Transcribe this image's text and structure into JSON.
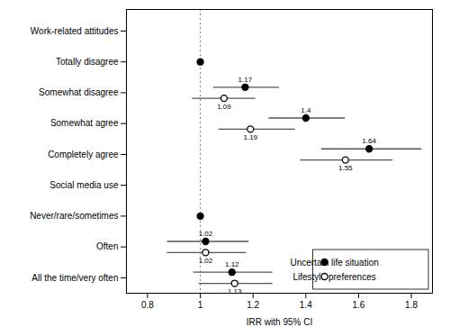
{
  "chart_data": {
    "type": "forest",
    "xlabel": "IRR with 95% CI",
    "xlim": [
      0.72,
      1.88
    ],
    "xticks": [
      0.8,
      1,
      1.2,
      1.4,
      1.6,
      1.8
    ],
    "reference_x": 1.0,
    "ci_color": "#555555",
    "legend": "lower right",
    "data_labels": true,
    "categories": [
      "Work-related attitudes",
      "Totally disagree",
      "Somewhat disagree",
      "Somewhat agree",
      "Completely agree",
      "Social media use",
      "Never/rare/sometimes",
      "Often",
      "All the time/very often"
    ],
    "series": [
      {
        "name": "Uncertain life situation",
        "color": "#000000",
        "marker": "filled",
        "values": [
          null,
          1.0,
          1.17,
          1.4,
          1.64,
          null,
          1.0,
          1.02,
          1.12
        ],
        "ci_lo": [
          null,
          1.0,
          1.05,
          1.26,
          1.46,
          null,
          1.0,
          0.875,
          0.975
        ],
        "ci_hi": [
          null,
          1.0,
          1.3,
          1.55,
          1.84,
          null,
          1.0,
          1.185,
          1.275
        ],
        "value_labels": [
          null,
          null,
          "1.17",
          "1.4",
          "1.64",
          null,
          null,
          "1.02",
          "1.12"
        ]
      },
      {
        "name": "Lifestyle preferences",
        "color": "#000000",
        "marker": "open",
        "values": [
          null,
          null,
          1.09,
          1.19,
          1.55,
          null,
          null,
          1.02,
          1.13
        ],
        "ci_lo": [
          null,
          null,
          0.97,
          1.07,
          1.38,
          null,
          null,
          0.875,
          0.995
        ],
        "ci_hi": [
          null,
          null,
          1.21,
          1.36,
          1.73,
          null,
          null,
          1.175,
          1.275
        ],
        "value_labels": [
          null,
          null,
          "1.09",
          "1.19",
          "1.55",
          null,
          null,
          "1.02",
          "1.13"
        ]
      }
    ]
  }
}
